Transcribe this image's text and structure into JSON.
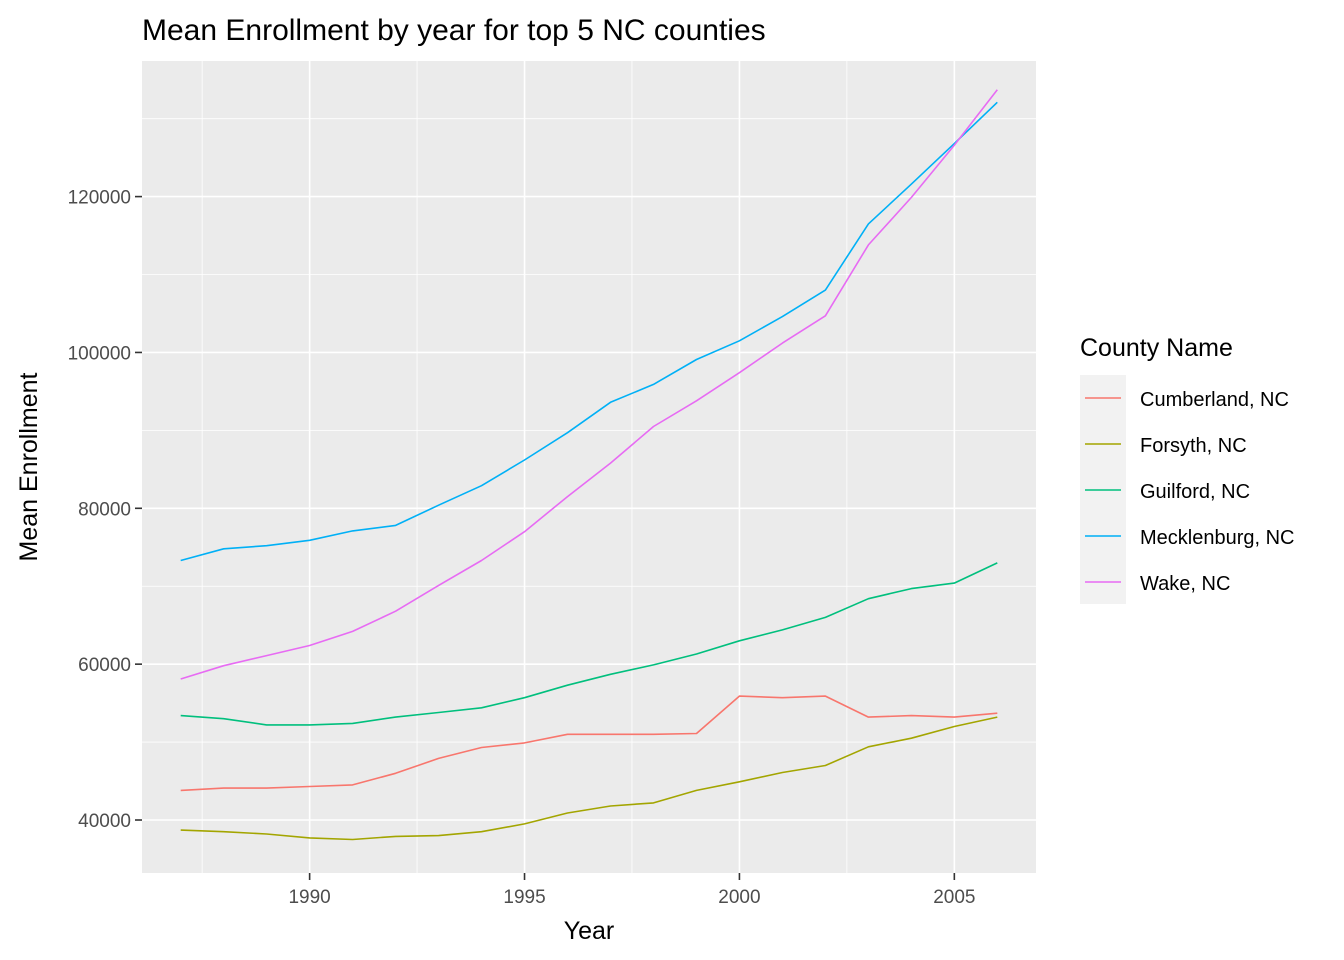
{
  "chart_data": {
    "type": "line",
    "title": "Mean Enrollment by year for top 5 NC counties",
    "xlabel": "Year",
    "ylabel": "Mean  Enrollment",
    "legend_title": "County Name",
    "legend_position": "right",
    "grid": true,
    "xlim": [
      1986.1,
      2006.9
    ],
    "ylim": [
      33200,
      137400
    ],
    "x_ticks": [
      1990,
      1995,
      2000,
      2005
    ],
    "y_ticks": [
      40000,
      60000,
      80000,
      100000,
      120000
    ],
    "x_tick_labels": [
      "1990",
      "1995",
      "2000",
      "2005"
    ],
    "y_tick_labels": [
      "40000",
      "60000",
      "80000",
      "100000",
      "120000"
    ],
    "x": [
      1987,
      1988,
      1989,
      1990,
      1991,
      1992,
      1993,
      1994,
      1995,
      1996,
      1997,
      1998,
      1999,
      2000,
      2001,
      2002,
      2003,
      2004,
      2005,
      2006
    ],
    "series": [
      {
        "name": "Cumberland, NC",
        "color": "#F8766D",
        "values": [
          43800,
          44100,
          44100,
          44300,
          44500,
          46000,
          47900,
          49300,
          49900,
          51000,
          51000,
          51000,
          51100,
          55900,
          55700,
          55900,
          53200,
          53400,
          53200,
          53700
        ]
      },
      {
        "name": "Forsyth, NC",
        "color": "#A3A500",
        "values": [
          38700,
          38500,
          38200,
          37700,
          37500,
          37900,
          38000,
          38500,
          39500,
          40900,
          41800,
          42200,
          43800,
          44900,
          46100,
          47000,
          49400,
          50500,
          52000,
          53200
        ]
      },
      {
        "name": "Guilford, NC",
        "color": "#00BF7D",
        "values": [
          53400,
          53000,
          52200,
          52200,
          52400,
          53200,
          53800,
          54400,
          55700,
          57300,
          58700,
          59900,
          61300,
          63000,
          64400,
          66000,
          68400,
          69700,
          70400,
          73000
        ]
      },
      {
        "name": "Mecklenburg, NC",
        "color": "#00B0F6",
        "values": [
          73300,
          74800,
          75200,
          75900,
          77100,
          77800,
          80400,
          82900,
          86200,
          89700,
          93600,
          95900,
          99100,
          101500,
          104600,
          108000,
          116500,
          121600,
          126800,
          132100
        ]
      },
      {
        "name": "Wake, NC",
        "color": "#E76BF3",
        "values": [
          58100,
          59800,
          61100,
          62400,
          64200,
          66800,
          70100,
          73300,
          77000,
          81500,
          85800,
          90500,
          93800,
          97400,
          101200,
          104700,
          113800,
          119900,
          126600,
          133700
        ]
      }
    ]
  }
}
